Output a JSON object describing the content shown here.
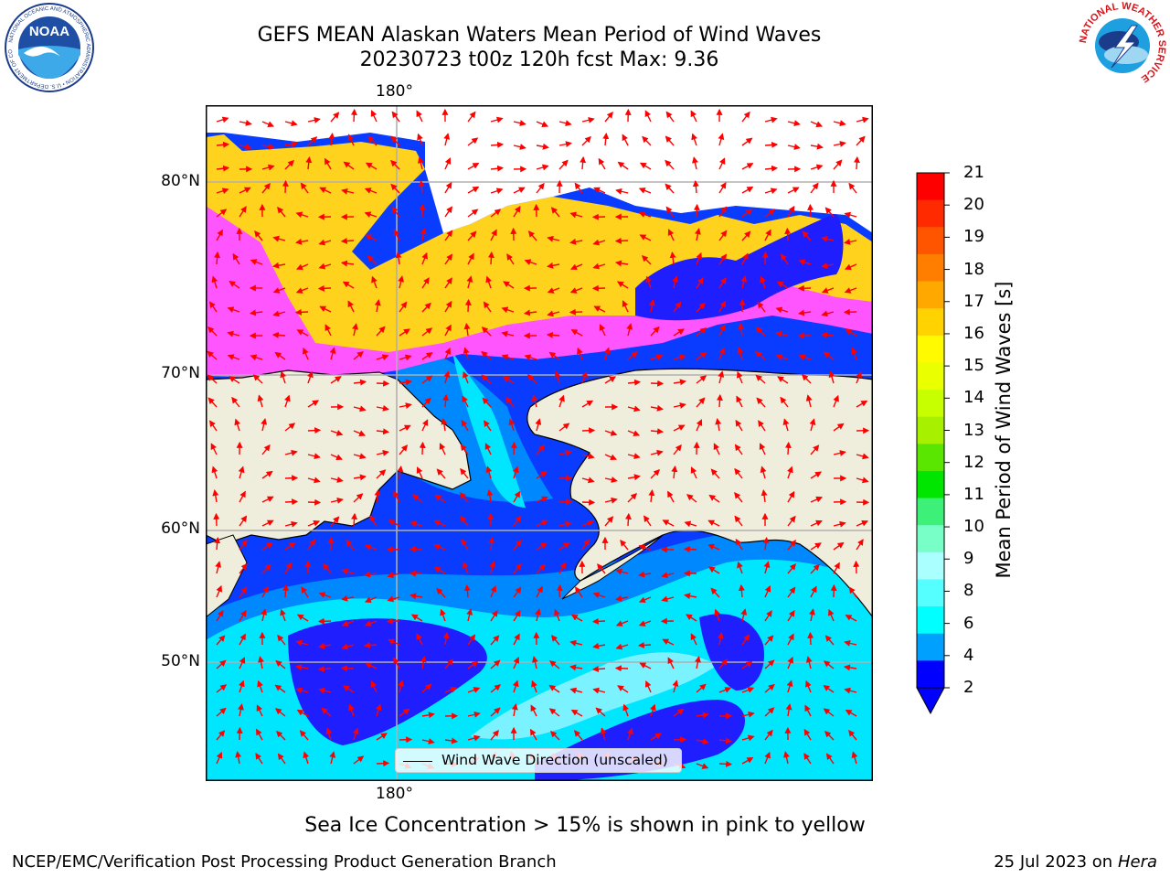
{
  "title": {
    "line1": "GEFS MEAN Alaskan Waters Mean Period of Wind Waves",
    "line2": "20230723 t00z 120h fcst   Max: 9.36"
  },
  "map": {
    "longitude_label_top": "180°",
    "longitude_label_bottom": "180°",
    "latitude_labels": [
      "80°N",
      "70°N",
      "60°N",
      "50°N"
    ],
    "legend_label": "Wind Wave Direction (unscaled)",
    "colors": {
      "land": "#efeddc",
      "grid": "#b0b0b0",
      "arrows": "#ff0000",
      "ice_low": "#ff55ff",
      "ice_high": "#ffd21e"
    }
  },
  "colorbar": {
    "title": "Mean Period of Wind Waves [s]",
    "ticks": [
      "21",
      "20",
      "19",
      "18",
      "17",
      "16",
      "15",
      "14",
      "13",
      "12",
      "11",
      "10",
      "9",
      "8",
      "6",
      "4",
      "2"
    ],
    "bin_colors_top_to_bottom": [
      "#ff0000",
      "#ff2a00",
      "#ff5400",
      "#ff7e00",
      "#ffa800",
      "#ffd200",
      "#fffa00",
      "#eaff00",
      "#c8ff00",
      "#a6f000",
      "#5ae600",
      "#00e600",
      "#3cf078",
      "#78ffc8",
      "#aaffff",
      "#55ffff",
      "#00ffff",
      "#00a0ff",
      "#0000ff"
    ],
    "extend_color": "#0000ff"
  },
  "logos": {
    "noaa_text": "NOAA",
    "noaa_ring": "NATIONAL OCEANIC AND ATMOSPHERIC ADMINISTRATION • U.S. DEPARTMENT OF COMMERCE",
    "nws_ring": "NATIONAL WEATHER SERVICE"
  },
  "note": "Sea Ice Concentration > 15% is shown in pink to yellow",
  "footer": {
    "left": "NCEP/EMC/Verification Post Processing Product Generation Branch",
    "right_date": "25 Jul 2023 on ",
    "right_machine": "Hera"
  }
}
